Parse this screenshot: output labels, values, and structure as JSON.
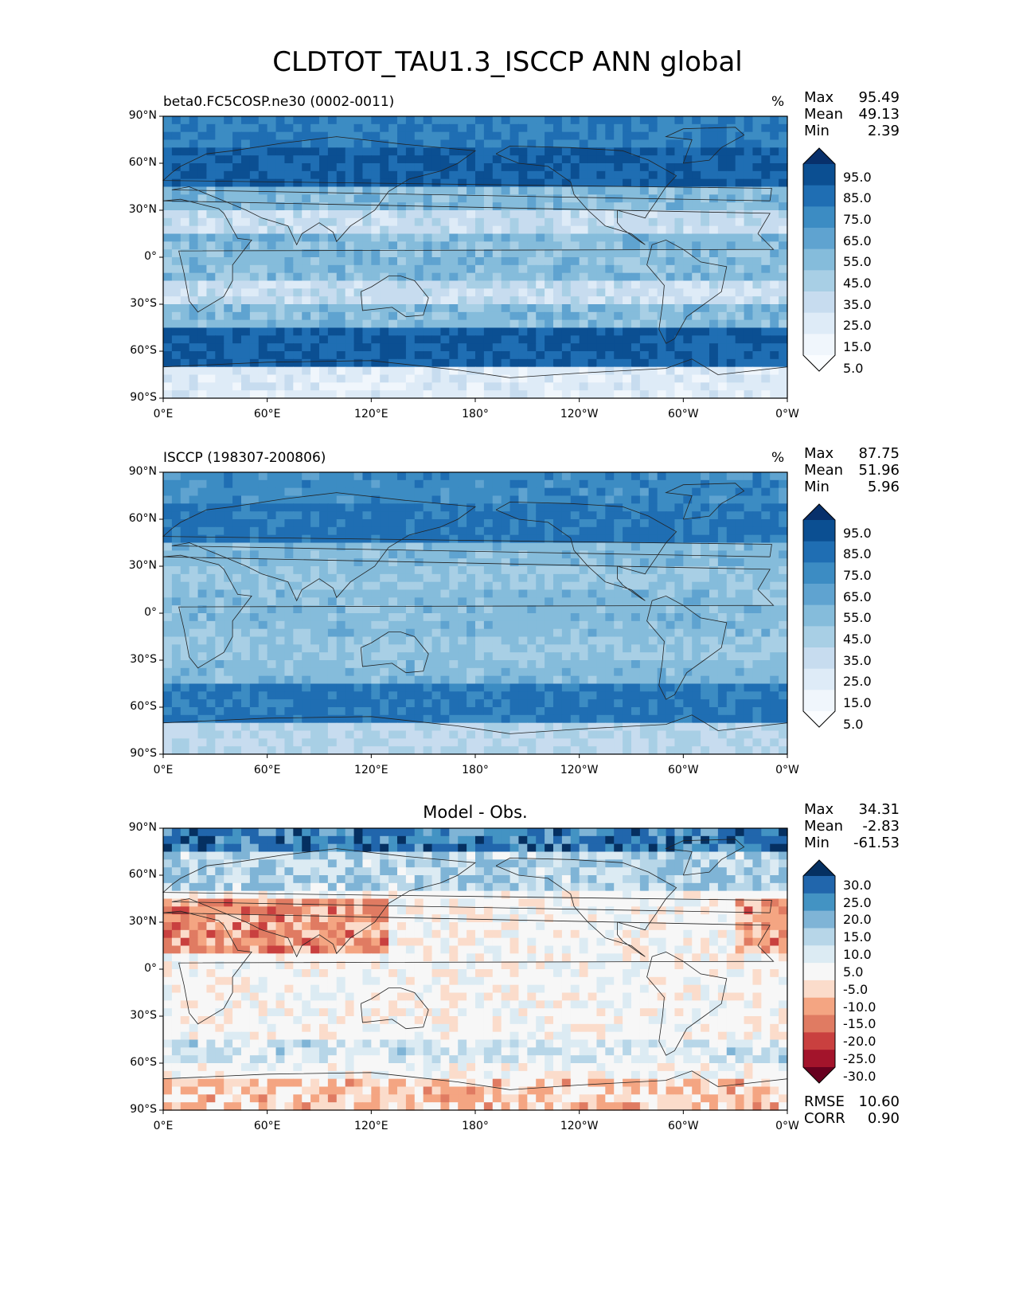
{
  "figure": {
    "title": "CLDTOT_TAU1.3_ISCCP ANN global"
  },
  "panels": [
    {
      "id": "model",
      "title_left": "beta0.FC5COSP.ne30 (0002-0011)",
      "title_center": "",
      "units": "%",
      "stats": [
        {
          "label": "Max",
          "value": "95.49"
        },
        {
          "label": "Mean",
          "value": "49.13"
        },
        {
          "label": "Min",
          "value": "2.39"
        }
      ],
      "colorbar": {
        "labels": [
          "95.0",
          "85.0",
          "75.0",
          "65.0",
          "55.0",
          "45.0",
          "35.0",
          "25.0",
          "15.0",
          "5.0"
        ],
        "colors": [
          "#08306b",
          "#0b4f92",
          "#1f6eb3",
          "#3c8cc3",
          "#5fa3d0",
          "#85bcdb",
          "#a8cfe5",
          "#c7dcef",
          "#deebf7",
          "#f0f6fc",
          "#fbfdff"
        ]
      }
    },
    {
      "id": "obs",
      "title_left": "ISCCP (198307-200806)",
      "title_center": "",
      "units": "%",
      "stats": [
        {
          "label": "Max",
          "value": "87.75"
        },
        {
          "label": "Mean",
          "value": "51.96"
        },
        {
          "label": "Min",
          "value": "5.96"
        }
      ],
      "colorbar": {
        "labels": [
          "95.0",
          "85.0",
          "75.0",
          "65.0",
          "55.0",
          "45.0",
          "35.0",
          "25.0",
          "15.0",
          "5.0"
        ],
        "colors": [
          "#08306b",
          "#0b4f92",
          "#1f6eb3",
          "#3c8cc3",
          "#5fa3d0",
          "#85bcdb",
          "#a8cfe5",
          "#c7dcef",
          "#deebf7",
          "#f0f6fc",
          "#fbfdff"
        ]
      }
    },
    {
      "id": "diff",
      "title_left": "",
      "title_center": "Model - Obs.",
      "units": "",
      "stats": [
        {
          "label": "Max",
          "value": "34.31"
        },
        {
          "label": "Mean",
          "value": "-2.83"
        },
        {
          "label": "Min",
          "value": "-61.53"
        }
      ],
      "extra_stats": [
        {
          "label": "RMSE",
          "value": "10.60"
        },
        {
          "label": "CORR",
          "value": "0.90"
        }
      ],
      "colorbar": {
        "labels": [
          "30.0",
          "25.0",
          "20.0",
          "15.0",
          "10.0",
          "5.0",
          "-5.0",
          "-10.0",
          "-15.0",
          "-20.0",
          "-25.0",
          "-30.0"
        ],
        "colors": [
          "#053061",
          "#2166ac",
          "#4393c3",
          "#7fb4d6",
          "#b7d6e8",
          "#dcebf3",
          "#f7f7f7",
          "#fbdccb",
          "#f4a582",
          "#e07b62",
          "#c9403f",
          "#a3142b",
          "#67001f"
        ]
      }
    }
  ],
  "axes": {
    "yticks": [
      "90°N",
      "60°N",
      "30°N",
      "0°",
      "30°S",
      "60°S",
      "90°S"
    ],
    "xticks": [
      "0°E",
      "60°E",
      "120°E",
      "180°",
      "120°W",
      "60°W",
      "0°W"
    ]
  }
}
